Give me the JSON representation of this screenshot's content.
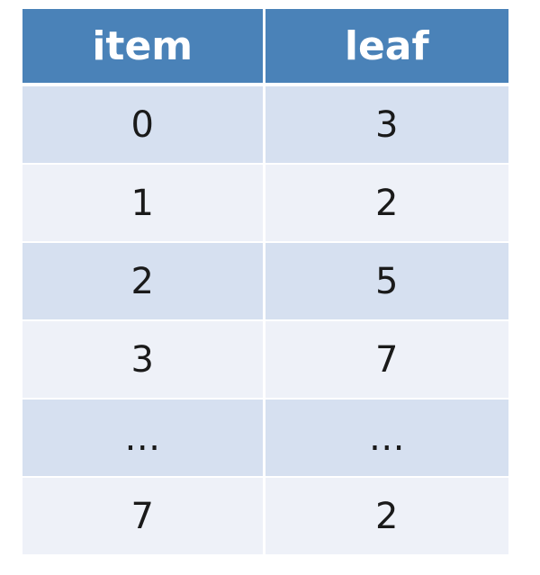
{
  "table": {
    "columns": [
      "item",
      "leaf"
    ],
    "rows": [
      [
        "0",
        "3"
      ],
      [
        "1",
        "2"
      ],
      [
        "2",
        "5"
      ],
      [
        "3",
        "7"
      ],
      [
        "…",
        "…"
      ],
      [
        "7",
        "2"
      ]
    ]
  },
  "colors": {
    "header_bg": "#4a82b8",
    "header_text": "#ffffff",
    "row_band": "#d6e0f0",
    "row_plain": "#eef1f8"
  }
}
